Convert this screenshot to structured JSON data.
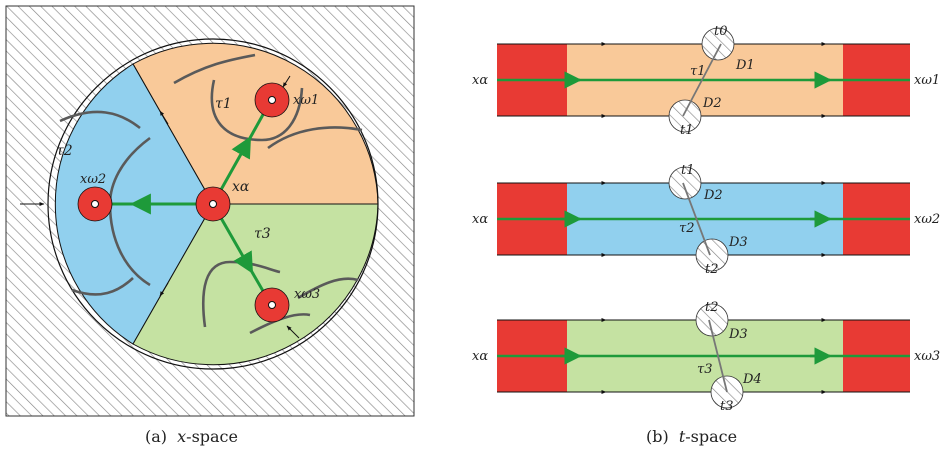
{
  "colors": {
    "orange": "#f9c999",
    "blue": "#91d0ee",
    "green": "#c5e2a2",
    "red": "#e83a34",
    "arrow_green": "#1e9a3a",
    "curve_gray": "#5a5a5a",
    "hatch": "#888888"
  },
  "left_panel": {
    "caption_tag": "(a)",
    "caption_var": "x",
    "caption_rest": "-space",
    "labels": {
      "alpha": "xα",
      "omega1": "xω1",
      "omega2": "xω2",
      "omega3": "xω3",
      "tau1": "τ1",
      "tau2": "τ2",
      "tau3": "τ3"
    }
  },
  "right_panel": {
    "caption_tag": "(b)",
    "caption_var": "t",
    "caption_rest": "-space",
    "strips": [
      {
        "left_label": "xα",
        "right_label": "xω1",
        "top_t": "t0",
        "bottom_t": "t1",
        "top_d": "D1",
        "bottom_d": "D2",
        "tau": "τ1",
        "color": "orange"
      },
      {
        "left_label": "xα",
        "right_label": "xω2",
        "top_t": "t1",
        "bottom_t": "t2",
        "top_d": "D2",
        "bottom_d": "D3",
        "tau": "τ2",
        "color": "blue"
      },
      {
        "left_label": "xα",
        "right_label": "xω3",
        "top_t": "t2",
        "bottom_t": "t3",
        "top_d": "D3",
        "bottom_d": "D4",
        "tau": "τ3",
        "color": "green"
      }
    ]
  }
}
